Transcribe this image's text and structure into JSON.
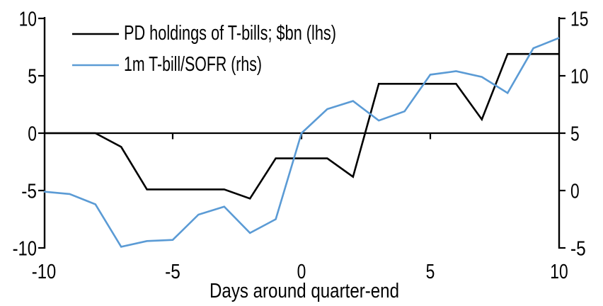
{
  "chart_data": {
    "type": "line",
    "title": "",
    "xlabel": "Days around quarter-end",
    "x": [
      -10,
      -9,
      -8,
      -7,
      -6,
      -5,
      -4,
      -3,
      -2,
      -1,
      0,
      1,
      2,
      3,
      4,
      5,
      6,
      7,
      8,
      9,
      10
    ],
    "series": [
      {
        "id": "pd-holdings",
        "name": "PD holdings of T-bills; $bn (lhs)",
        "axis": "left",
        "color": "#000000",
        "values": [
          0,
          0,
          0,
          -1.2,
          -4.9,
          -4.9,
          -4.9,
          -4.9,
          -5.7,
          -2.2,
          -2.2,
          -2.2,
          -3.8,
          4.3,
          4.3,
          4.3,
          4.3,
          1.2,
          6.9,
          6.9,
          6.9
        ]
      },
      {
        "id": "tbill-sofr",
        "name": "1m T-bill/SOFR (rhs)",
        "axis": "right",
        "color": "#5B9BD5",
        "values": [
          -0.1,
          -0.3,
          -1.2,
          -4.9,
          -4.4,
          -4.3,
          -2.1,
          -1.4,
          -3.7,
          -2.5,
          5.0,
          7.1,
          7.8,
          6.1,
          6.9,
          10.1,
          10.4,
          9.9,
          8.5,
          12.4,
          13.3
        ]
      }
    ],
    "left_axis": {
      "range": [
        -10,
        10
      ],
      "ticks": [
        -10,
        -5,
        0,
        5,
        10
      ]
    },
    "right_axis": {
      "range": [
        -5,
        15
      ],
      "ticks": [
        -5,
        0,
        5,
        10,
        15
      ]
    },
    "x_axis": {
      "range": [
        -10,
        10
      ],
      "ticks": [
        -10,
        -5,
        0,
        5,
        10
      ]
    },
    "legend_position": "top-left",
    "grid": false,
    "background": "#FFFFFF",
    "axis_color": "#000000"
  }
}
